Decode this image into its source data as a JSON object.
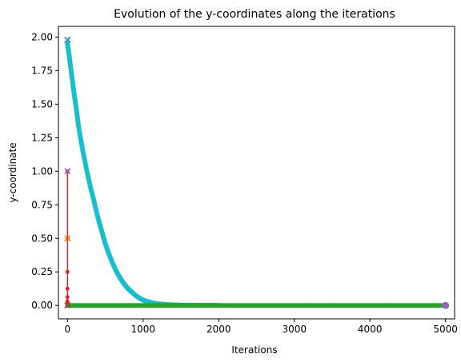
{
  "chart_data": {
    "type": "line",
    "title": "Evolution of the y-coordinates along the iterations",
    "xlabel": "Iterations",
    "ylabel": "y-coordinate",
    "xlim": [
      -120,
      5120
    ],
    "ylim": [
      -0.1,
      2.08
    ],
    "x_ticks": [
      0,
      1000,
      2000,
      3000,
      4000,
      5000
    ],
    "x_tick_labels": [
      "0",
      "1000",
      "2000",
      "3000",
      "4000",
      "5000"
    ],
    "y_ticks": [
      0.0,
      0.25,
      0.5,
      0.75,
      1.0,
      1.25,
      1.5,
      1.75,
      2.0
    ],
    "y_tick_labels": [
      "0.00",
      "0.25",
      "0.50",
      "0.75",
      "1.00",
      "1.25",
      "1.50",
      "1.75",
      "2.00"
    ],
    "grid": false,
    "series": [
      {
        "color": "#17becf",
        "style": "dense-markers",
        "x": [
          0,
          25,
          50,
          75,
          100,
          125,
          150,
          200,
          250,
          300,
          350,
          400,
          450,
          500,
          550,
          600,
          650,
          700,
          750,
          800,
          850,
          900,
          950,
          1000,
          1050,
          1100,
          1150,
          1200,
          1300,
          1400,
          1500,
          1600,
          1700,
          1800,
          1900,
          2000
        ],
        "y": [
          1.95,
          1.85,
          1.74,
          1.63,
          1.53,
          1.43,
          1.32,
          1.16,
          1.02,
          0.89,
          0.78,
          0.66,
          0.56,
          0.46,
          0.38,
          0.31,
          0.25,
          0.2,
          0.16,
          0.125,
          0.1,
          0.075,
          0.055,
          0.04,
          0.03,
          0.022,
          0.016,
          0.012,
          0.007,
          0.004,
          0.0025,
          0.0015,
          0.001,
          0.0006,
          0.0003,
          0.0001
        ]
      },
      {
        "color": "#2ca02c",
        "style": "dense-markers",
        "x": [
          0,
          250,
          500,
          750,
          1000,
          1250,
          1500,
          1750,
          2000,
          2250,
          2500,
          2750,
          3000,
          3250,
          3500,
          3750,
          4000,
          4250,
          4500,
          4750,
          5000
        ],
        "y": [
          0,
          0,
          0,
          0,
          0,
          0,
          0,
          0,
          0,
          0,
          0,
          0,
          0,
          0,
          0,
          0,
          0,
          0,
          0,
          0,
          0
        ]
      },
      {
        "color": "#d62728",
        "style": "line-markers",
        "x": [
          0,
          0,
          0,
          0,
          0,
          0,
          0,
          0
        ],
        "y": [
          1.0,
          0.5,
          0.25,
          0.125,
          0.0625,
          0.03125,
          0.015,
          0.0
        ]
      }
    ],
    "special_markers": [
      {
        "x": 0,
        "y": 1.98,
        "marker": "x",
        "color": "#1f77b4"
      },
      {
        "x": 0,
        "y": 1.0,
        "marker": "x",
        "color": "#9467bd"
      },
      {
        "x": 0,
        "y": 0.5,
        "marker": "x",
        "color": "#ff7f0e"
      },
      {
        "x": 0,
        "y": 0.0,
        "marker": "x",
        "color": "#8c564b"
      },
      {
        "x": 5000,
        "y": 0.0,
        "marker": "o",
        "color": "#9467bd"
      }
    ]
  }
}
